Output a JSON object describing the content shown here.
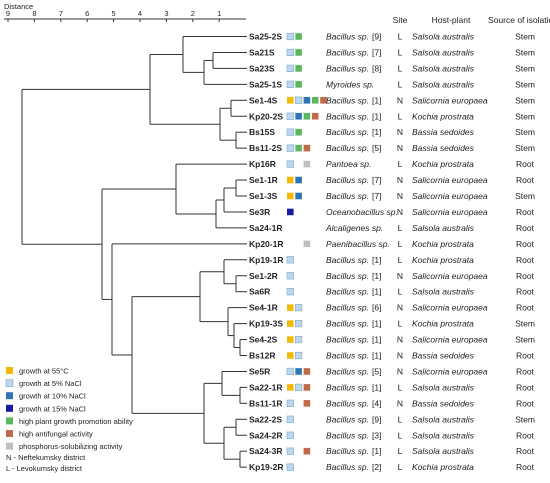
{
  "distance": {
    "label": "Distance",
    "ticks": [
      "9",
      "8",
      "7",
      "6",
      "5",
      "4",
      "3",
      "2",
      "1"
    ]
  },
  "headers": {
    "site": "Site",
    "host": "Host-plant",
    "source": "Source of isolation"
  },
  "colors": {
    "growth55": "#f5b800",
    "nacl5": "#bdd7ee",
    "nacl10": "#2e75b6",
    "nacl15": "#1a1aa0",
    "growthPromotion": "#5cb85c",
    "antifungal": "#c0694a",
    "phosphorus": "#bfbfbf"
  },
  "strains": [
    {
      "id": "Sa25-2S",
      "species": "Bacillus sp.",
      "ref": "[9]",
      "site": "L",
      "host": "Salsola australis",
      "source": "Stem",
      "marks": [
        "nacl5",
        "growthPromotion"
      ]
    },
    {
      "id": "Sa21S",
      "species": "Bacillus sp.",
      "ref": "[7]",
      "site": "L",
      "host": "Salsola australis",
      "source": "Stem",
      "marks": [
        "nacl5",
        "growthPromotion"
      ]
    },
    {
      "id": "Sa23S",
      "species": "Bacillus sp.",
      "ref": "[8]",
      "site": "L",
      "host": "Salsola australis",
      "source": "Stem",
      "marks": [
        "nacl5",
        "growthPromotion"
      ]
    },
    {
      "id": "Sa25-1S",
      "species": "Myroides sp.",
      "ref": "",
      "site": "L",
      "host": "Salsola australis",
      "source": "Stem",
      "marks": [
        "nacl5",
        "growthPromotion"
      ]
    },
    {
      "id": "Se1-4S",
      "species": "Bacillus sp.",
      "ref": "[1]",
      "site": "N",
      "host": "Salicornia europaea",
      "source": "Stem",
      "marks": [
        "growth55",
        "nacl5",
        "nacl10",
        "growthPromotion",
        "antifungal"
      ]
    },
    {
      "id": "Kp20-2S",
      "species": "Bacillus sp.",
      "ref": "[1]",
      "site": "L",
      "host": "Kochia prostrata",
      "source": "Stem",
      "marks": [
        "nacl5",
        "nacl10",
        "growthPromotion",
        "antifungal"
      ]
    },
    {
      "id": "Bs15S",
      "species": "Bacillus sp.",
      "ref": "[1]",
      "site": "N",
      "host": "Bassia sedoides",
      "source": "Stem",
      "marks": [
        "nacl5",
        "growthPromotion"
      ]
    },
    {
      "id": "Bs11-2S",
      "species": "Bacillus sp.",
      "ref": "[5]",
      "site": "N",
      "host": "Bassia sedoides",
      "source": "Stem",
      "marks": [
        "nacl5",
        "growthPromotion",
        "antifungal"
      ]
    },
    {
      "id": "Kp16R",
      "species": "Pantoea sp.",
      "ref": "",
      "site": "L",
      "host": "Kochia prostrata",
      "source": "Root",
      "marks": [
        "nacl5",
        "",
        "phosphorus"
      ]
    },
    {
      "id": "Se1-1R",
      "species": "Bacillus sp.",
      "ref": "[7]",
      "site": "N",
      "host": "Salicornia europaea",
      "source": "Root",
      "marks": [
        "growth55",
        "nacl10"
      ]
    },
    {
      "id": "Se1-3S",
      "species": "Bacillus sp.",
      "ref": "[7]",
      "site": "N",
      "host": "Salicornia europaea",
      "source": "Stem",
      "marks": [
        "growth55",
        "nacl10"
      ]
    },
    {
      "id": "Se3R",
      "species": "Oceanobacillus sp.",
      "ref": "",
      "site": "N",
      "host": "Salicornia europaea",
      "source": "Root",
      "marks": [
        "nacl15"
      ]
    },
    {
      "id": "Sa24-1R",
      "species": "Alcaligenes sp.",
      "ref": "",
      "site": "L",
      "host": "Salsola australis",
      "source": "Root",
      "marks": []
    },
    {
      "id": "Kp20-1R",
      "species": "Paenibacillus sp.",
      "ref": "",
      "site": "L",
      "host": "Kochia prostrata",
      "source": "Root",
      "marks": [
        "",
        "",
        "phosphorus"
      ]
    },
    {
      "id": "Kp19-1R",
      "species": "Bacillus sp.",
      "ref": "[1]",
      "site": "L",
      "host": "Kochia prostrata",
      "source": "Root",
      "marks": [
        "nacl5"
      ]
    },
    {
      "id": "Se1-2R",
      "species": "Bacillus sp.",
      "ref": "[1]",
      "site": "N",
      "host": "Salicornia europaea",
      "source": "Root",
      "marks": [
        "nacl5"
      ]
    },
    {
      "id": "Sa6R",
      "species": "Bacillus sp.",
      "ref": "[1]",
      "site": "L",
      "host": "Salsola australis",
      "source": "Root",
      "marks": [
        "nacl5"
      ]
    },
    {
      "id": "Se4-1R",
      "species": "Bacillus sp.",
      "ref": "[6]",
      "site": "N",
      "host": "Salicornia europaea",
      "source": "Root",
      "marks": [
        "growth55",
        "nacl5"
      ]
    },
    {
      "id": "Kp19-3S",
      "species": "Bacillus sp.",
      "ref": "[1]",
      "site": "L",
      "host": "Kochia prostrata",
      "source": "Stem",
      "marks": [
        "growth55",
        "nacl5"
      ]
    },
    {
      "id": "Se4-2S",
      "species": "Bacillus sp.",
      "ref": "[1]",
      "site": "N",
      "host": "Salicornia europaea",
      "source": "Stem",
      "marks": [
        "growth55",
        "nacl5"
      ]
    },
    {
      "id": "Bs12R",
      "species": "Bacillus sp.",
      "ref": "[1]",
      "site": "N",
      "host": "Bassia sedoides",
      "source": "Root",
      "marks": [
        "growth55",
        "nacl5"
      ]
    },
    {
      "id": "Se5R",
      "species": "Bacillus sp.",
      "ref": "[5]",
      "site": "N",
      "host": "Salicornia europaea",
      "source": "Root",
      "marks": [
        "nacl5",
        "nacl10",
        "antifungal"
      ]
    },
    {
      "id": "Sa22-1R",
      "species": "Bacillus sp.",
      "ref": "[1]",
      "site": "L",
      "host": "Salsola australis",
      "source": "Root",
      "marks": [
        "growth55",
        "nacl5",
        "antifungal"
      ]
    },
    {
      "id": "Bs11-1R",
      "species": "Bacillus sp.",
      "ref": "[4]",
      "site": "N",
      "host": "Bassia sedoides",
      "source": "Root",
      "marks": [
        "nacl5",
        "",
        "antifungal"
      ]
    },
    {
      "id": "Sa22-2S",
      "species": "Bacillus sp.",
      "ref": "[9]",
      "site": "L",
      "host": "Salsola australis",
      "source": "Stem",
      "marks": [
        "nacl5"
      ]
    },
    {
      "id": "Sa24-2R",
      "species": "Bacillus sp.",
      "ref": "[3]",
      "site": "L",
      "host": "Salsola australis",
      "source": "Root",
      "marks": [
        "nacl5"
      ]
    },
    {
      "id": "Sa24-3R",
      "species": "Bacillus sp.",
      "ref": "[1]",
      "site": "L",
      "host": "Salsola australis",
      "source": "Root",
      "marks": [
        "nacl5",
        "",
        "antifungal"
      ]
    },
    {
      "id": "Kp19-2R",
      "species": "Bacillus sp.",
      "ref": "[2]",
      "site": "L",
      "host": "Kochia prostrata",
      "source": "Root",
      "marks": [
        "nacl5"
      ]
    }
  ],
  "legend": [
    {
      "key": "growth55",
      "label": "growth at 55°C"
    },
    {
      "key": "nacl5",
      "label": "growth at 5% NaCl"
    },
    {
      "key": "nacl10",
      "label": "growth at 10% NaCl"
    },
    {
      "key": "nacl15",
      "label": "growth at 15% NaCl"
    },
    {
      "key": "growthPromotion",
      "label": "high plant growth promotion ability"
    },
    {
      "key": "antifungal",
      "label": "high antifungal activity"
    },
    {
      "key": "phosphorus",
      "label": "phosphorus-solubilizing activity"
    }
  ],
  "districts": [
    "N - Neftekumsky district",
    "L - Levokumsky district"
  ]
}
